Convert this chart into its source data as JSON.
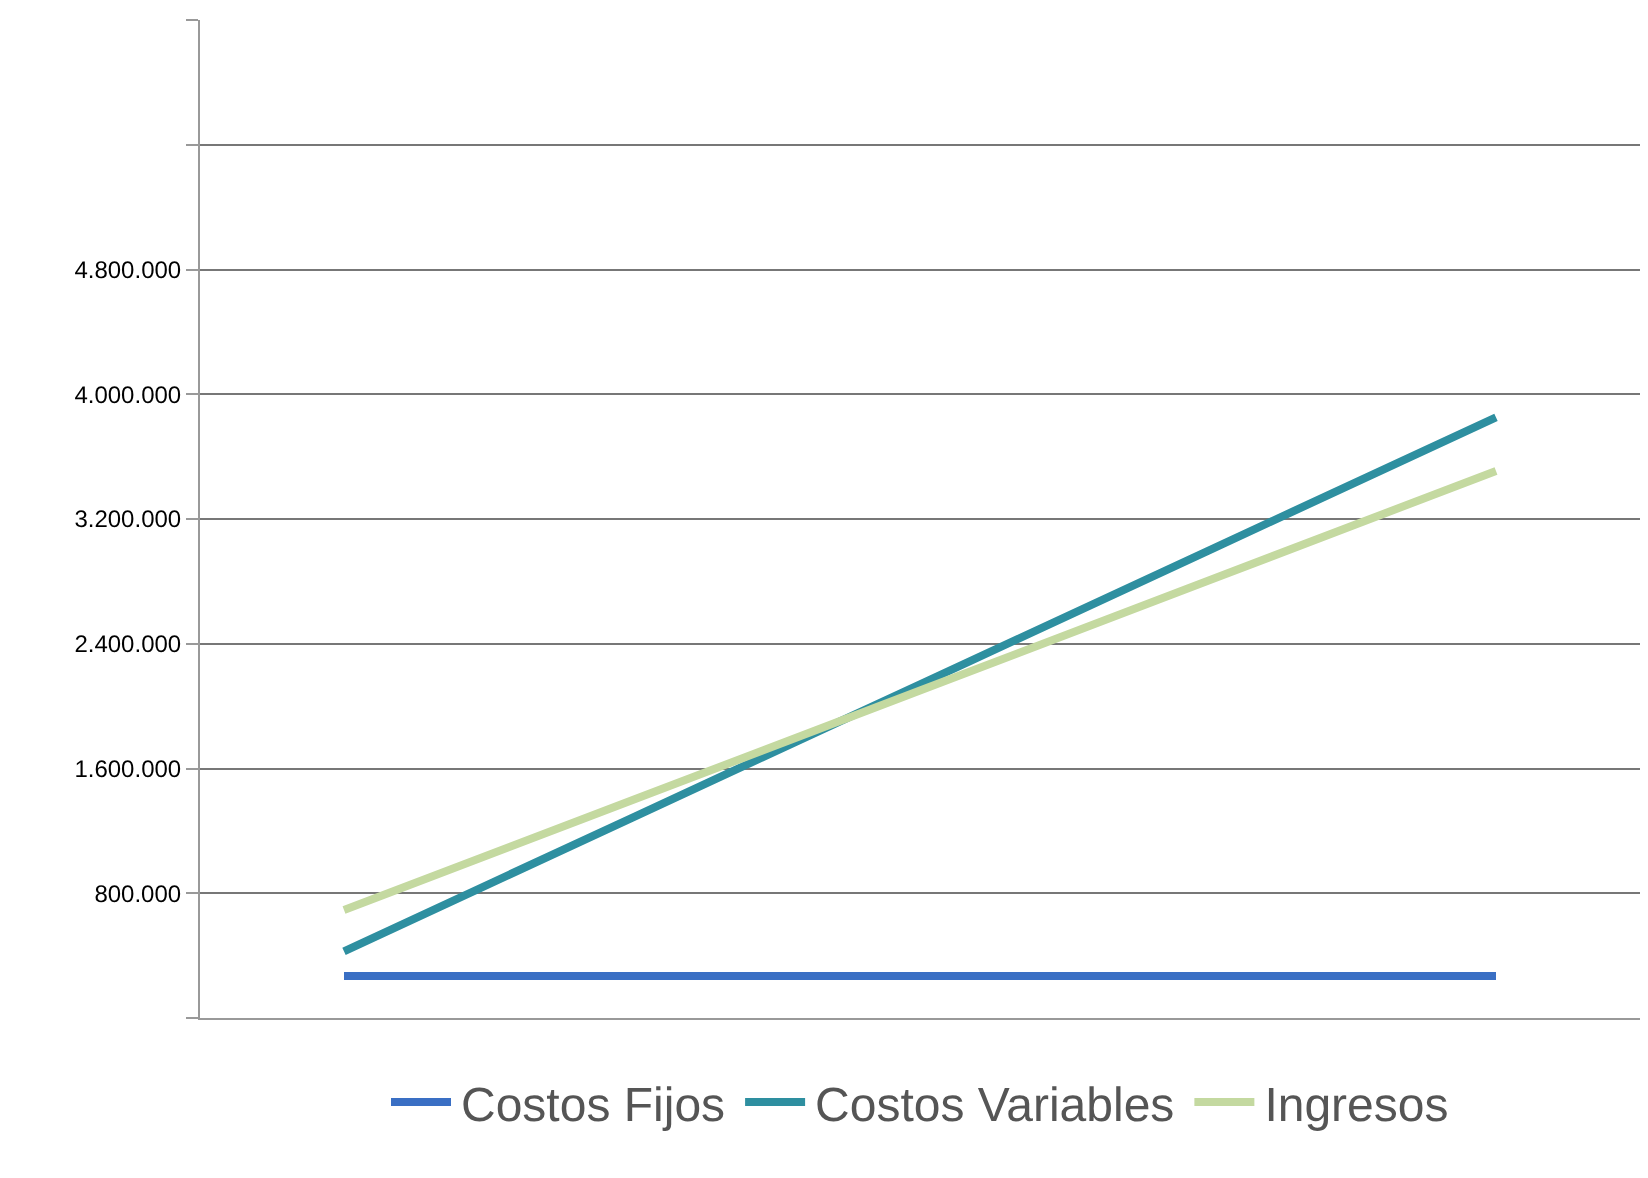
{
  "chart_data": {
    "type": "line",
    "categories": [
      null,
      null,
      null,
      null,
      null
    ],
    "series": [
      {
        "name": "Costos Fijos",
        "color": "#3a6fc4",
        "values": [
          270000,
          270000,
          270000,
          270000,
          270000
        ]
      },
      {
        "name": "Costos Variables",
        "color": "#2e8fa0",
        "values": [
          428000,
          1284000,
          2140000,
          2996000,
          3852000
        ]
      },
      {
        "name": "Ingresos",
        "color": "#c4d9a0",
        "values": [
          692000,
          1396000,
          2100000,
          2804000,
          3508000
        ]
      }
    ],
    "ylim": [
      0,
      6400000
    ],
    "yticks": [
      {
        "value": 0,
        "label": null
      },
      {
        "value": 800000,
        "label": "800.000"
      },
      {
        "value": 1600000,
        "label": "1.600.000"
      },
      {
        "value": 2400000,
        "label": "2.400.000"
      },
      {
        "value": 3200000,
        "label": "3.200.000"
      },
      {
        "value": 4000000,
        "label": "4.000.000"
      },
      {
        "value": 4800000,
        "label": "4.800.000"
      },
      {
        "value": 5600000,
        "label": null
      },
      {
        "value": 6400000,
        "label": null
      }
    ],
    "grid": "y",
    "legend": "bottom",
    "tick_labels": "y",
    "marker": "none",
    "line_style": "solid"
  }
}
